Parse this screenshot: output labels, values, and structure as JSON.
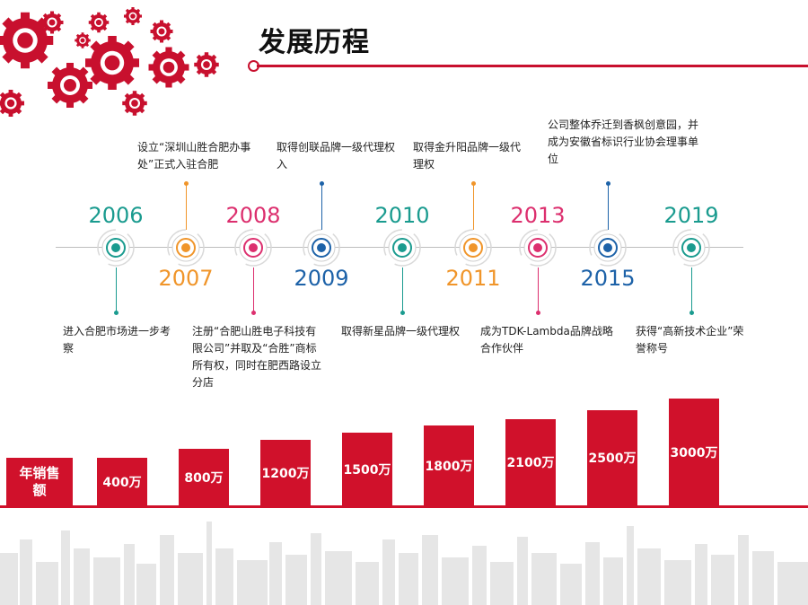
{
  "title": "发展历程",
  "colors": {
    "red": "#d0112b",
    "teal": "#1a9b8f",
    "orange": "#f0952a",
    "magenta": "#dc2f6e",
    "blue": "#1d62a8"
  },
  "timeline": [
    {
      "year": "2006",
      "event": "进入合肥市场进一步考察",
      "color": "teal"
    },
    {
      "year": "2007",
      "event": "设立“深圳山胜合肥办事处”正式入驻合肥",
      "color": "orange"
    },
    {
      "year": "2008",
      "event": "注册“合肥山胜电子科技有限公司”并取及“合胜”商标所有权，同时在肥西路设立分店",
      "color": "magenta"
    },
    {
      "year": "2009",
      "event": "取得创联品牌一级代理权入",
      "color": "blue"
    },
    {
      "year": "2010",
      "event": "取得新星品牌一级代理权",
      "color": "teal"
    },
    {
      "year": "2011",
      "event": "取得金升阳品牌一级代理权",
      "color": "orange"
    },
    {
      "year": "2013",
      "event": "成为TDK-Lambda品牌战略合作伙伴",
      "color": "magenta"
    },
    {
      "year": "2015",
      "event": "公司整体乔迁到香枫创意园，并成为安徽省标识行业协会理事单位",
      "color": "blue"
    },
    {
      "year": "2019",
      "event": "获得“高新技术企业”荣誉称号",
      "color": "teal"
    }
  ],
  "sales": {
    "label": "年销售额",
    "bars": [
      {
        "label": "400万",
        "value": 400
      },
      {
        "label": "800万",
        "value": 800
      },
      {
        "label": "1200万",
        "value": 1200
      },
      {
        "label": "1500万",
        "value": 1500
      },
      {
        "label": "1800万",
        "value": 1800
      },
      {
        "label": "2100万",
        "value": 2100
      },
      {
        "label": "2500万",
        "value": 2500
      },
      {
        "label": "3000万",
        "value": 3000
      }
    ]
  }
}
